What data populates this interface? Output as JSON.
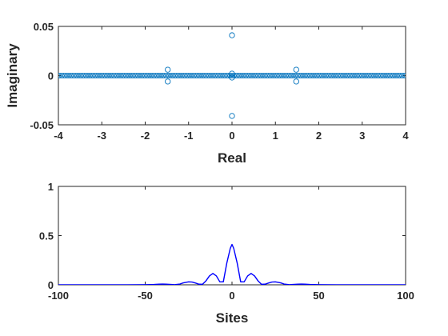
{
  "chart_data": [
    {
      "type": "scatter",
      "marker": "open-circle",
      "xlabel": "Real",
      "ylabel": "Imaginary",
      "xlim": [
        -4,
        4
      ],
      "ylim": [
        -0.05,
        0.05
      ],
      "xticks": [
        -4,
        -3,
        -2,
        -1,
        0,
        1,
        2,
        3,
        4
      ],
      "yticks": [
        -0.05,
        0,
        0.05
      ],
      "xtick_labels": [
        "-4",
        "-3",
        "-2",
        "-1",
        "0",
        "1",
        "2",
        "3",
        "4"
      ],
      "ytick_labels": [
        "-0.05",
        "0",
        "0.05"
      ],
      "grid": false,
      "color": "#0072bd",
      "series": [
        {
          "real_axis_points": {
            "x_min": -4,
            "x_max": 4,
            "count": 201,
            "y": 0
          },
          "points": [
            [
              0,
              0.041
            ],
            [
              0,
              -0.041
            ],
            [
              -1.48,
              0.006
            ],
            [
              -1.48,
              -0.006
            ],
            [
              1.48,
              0.006
            ],
            [
              1.48,
              -0.006
            ],
            [
              0,
              0.002
            ],
            [
              0,
              -0.002
            ]
          ]
        }
      ]
    },
    {
      "type": "line",
      "xlabel": "Sites",
      "ylabel": "",
      "xlim": [
        -100,
        100
      ],
      "ylim": [
        0,
        1
      ],
      "xticks": [
        -100,
        -50,
        0,
        50,
        100
      ],
      "yticks": [
        0,
        0.5,
        1
      ],
      "xtick_labels": [
        "-100",
        "-50",
        "0",
        "50",
        "100"
      ],
      "ytick_labels": [
        "0",
        "0.5",
        "1"
      ],
      "grid": false,
      "color": "#0000ff",
      "series": [
        {
          "x": [
            -100,
            -60,
            -50,
            -45,
            -42,
            -40,
            -38,
            -35,
            -33,
            -30,
            -28,
            -25,
            -23,
            -21,
            -19,
            -17,
            -15,
            -13,
            -11,
            -9,
            -7,
            -5,
            -3,
            -1,
            0,
            1,
            3,
            5,
            7,
            9,
            11,
            13,
            15,
            17,
            19,
            21,
            23,
            25,
            28,
            30,
            33,
            35,
            38,
            40,
            42,
            45,
            50,
            60,
            100
          ],
          "values": [
            0,
            0,
            0.001,
            0.003,
            0.006,
            0.008,
            0.007,
            0.003,
            0.001,
            0.008,
            0.02,
            0.03,
            0.028,
            0.018,
            0.006,
            0.005,
            0.04,
            0.09,
            0.115,
            0.09,
            0.03,
            0.03,
            0.22,
            0.37,
            0.41,
            0.37,
            0.22,
            0.03,
            0.03,
            0.09,
            0.115,
            0.09,
            0.04,
            0.005,
            0.006,
            0.018,
            0.028,
            0.03,
            0.02,
            0.008,
            0.001,
            0.003,
            0.007,
            0.008,
            0.006,
            0.003,
            0.001,
            0,
            0
          ]
        }
      ]
    }
  ]
}
